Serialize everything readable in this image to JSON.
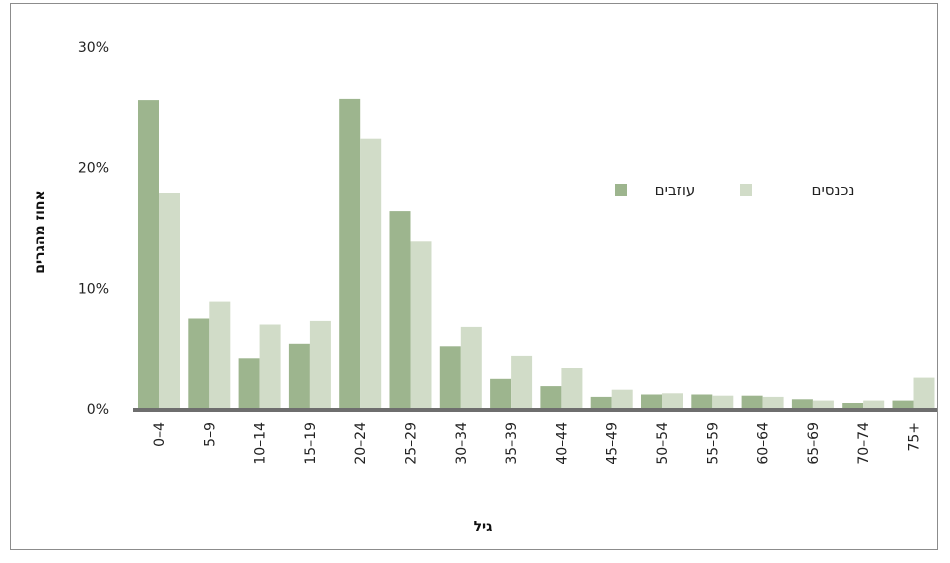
{
  "chart_data": {
    "type": "bar",
    "title": "",
    "xlabel": "גיל",
    "ylabel": "אחוז מהגרים",
    "ylim": [
      0,
      30
    ],
    "yticks": [
      0,
      10,
      20,
      30
    ],
    "ytick_labels": [
      "0%",
      "10%",
      "20%",
      "30%"
    ],
    "categories": [
      "0–4",
      "5–9",
      "10–14",
      "15–19",
      "20–24",
      "25–29",
      "30–34",
      "35–39",
      "40–44",
      "45–49",
      "50–54",
      "55–59",
      "60–64",
      "65–69",
      "70–74",
      "75+"
    ],
    "series": [
      {
        "name": "עוזבים",
        "color": "#9db58e",
        "values": [
          25.6,
          7.5,
          4.2,
          5.4,
          25.7,
          16.4,
          5.2,
          2.5,
          1.9,
          1.0,
          1.2,
          1.2,
          1.1,
          0.8,
          0.5,
          0.7
        ]
      },
      {
        "name": "נכנסים",
        "color": "#d1dcc8",
        "values": [
          17.9,
          8.9,
          7.0,
          7.3,
          22.4,
          13.9,
          6.8,
          4.4,
          3.4,
          1.6,
          1.3,
          1.1,
          1.0,
          0.7,
          0.7,
          2.6
        ]
      }
    ],
    "legend_position": "top-right",
    "grid": false
  }
}
